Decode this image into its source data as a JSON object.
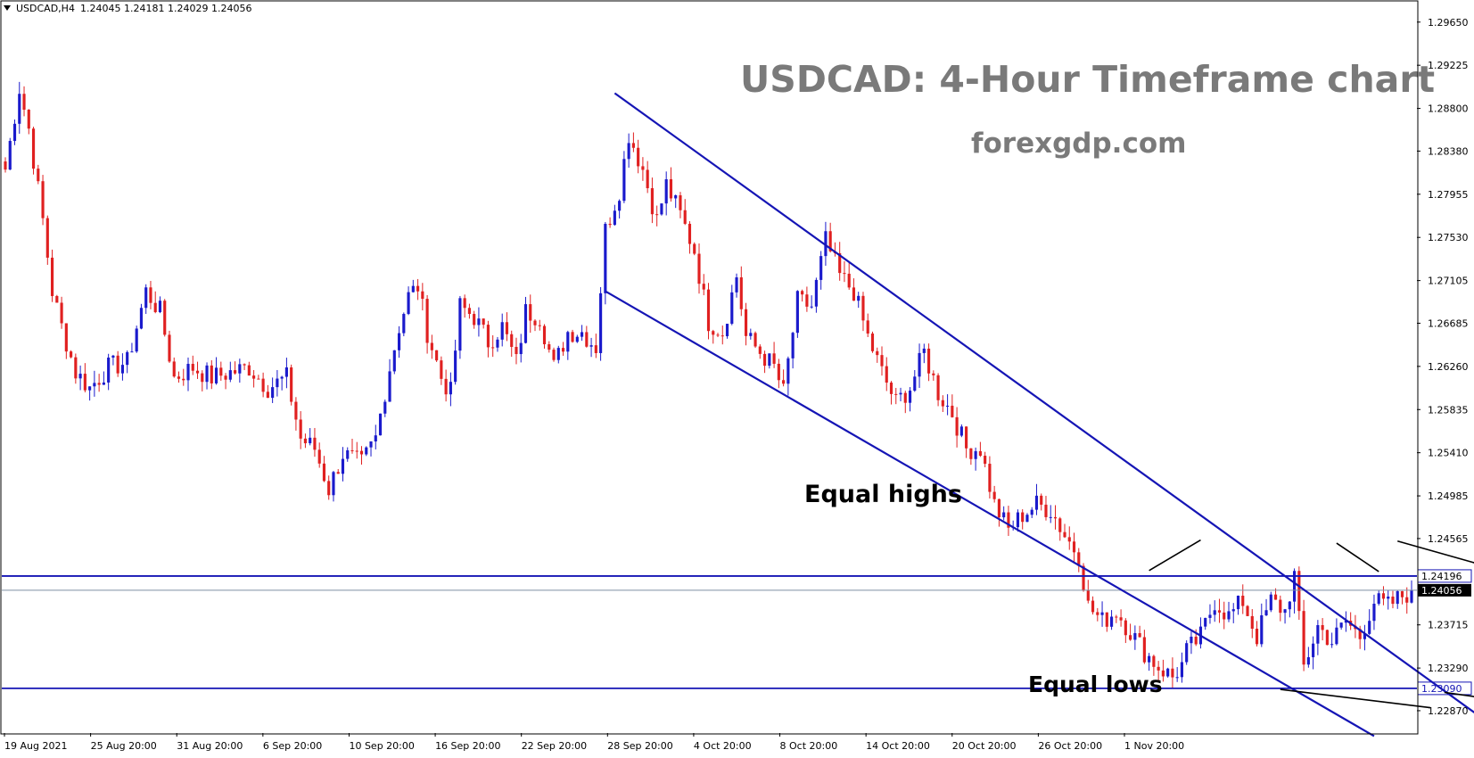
{
  "header": {
    "symbol_label": "USDCAD,H4",
    "ohlc": "1.24045 1.24181 1.24029 1.24056"
  },
  "title": "USDCAD: 4-Hour Timeframe chart",
  "subtitle": "forexgdp.com",
  "colors": {
    "bull": "#1a1acc",
    "bear": "#e02020",
    "line": "#1515b5",
    "grid_border": "#000000"
  },
  "chart_data": {
    "type": "candlestick",
    "symbol": "USDCAD",
    "timeframe": "H4",
    "ylim": [
      1.2265,
      1.2985
    ],
    "y_ticks": [
      "1.29650",
      "1.29225",
      "1.28800",
      "1.28380",
      "1.27955",
      "1.27530",
      "1.27105",
      "1.26685",
      "1.26260",
      "1.25835",
      "1.25410",
      "1.24985",
      "1.24565",
      "1.23715",
      "1.23290",
      "1.22870"
    ],
    "x_ticks": [
      "19 Aug 2021",
      "25 Aug 20:00",
      "31 Aug 20:00",
      "6 Sep 20:00",
      "10 Sep 20:00",
      "16 Sep 20:00",
      "22 Sep 20:00",
      "28 Sep 20:00",
      "4 Oct 20:00",
      "8 Oct 20:00",
      "14 Oct 20:00",
      "20 Oct 20:00",
      "26 Oct 20:00",
      "1 Nov 20:00"
    ],
    "bar_count": 252,
    "path_points": [
      [
        0,
        1.282
      ],
      [
        3,
        1.29
      ],
      [
        5,
        1.286
      ],
      [
        8,
        1.277
      ],
      [
        10,
        1.27
      ],
      [
        12,
        1.2665
      ],
      [
        15,
        1.262
      ],
      [
        18,
        1.2605
      ],
      [
        22,
        1.2625
      ],
      [
        26,
        1.263
      ],
      [
        30,
        1.27
      ],
      [
        33,
        1.268
      ],
      [
        36,
        1.2615
      ],
      [
        40,
        1.2625
      ],
      [
        44,
        1.2615
      ],
      [
        48,
        1.262
      ],
      [
        52,
        1.2625
      ],
      [
        56,
        1.2605
      ],
      [
        60,
        1.2615
      ],
      [
        63,
        1.2555
      ],
      [
        66,
        1.2545
      ],
      [
        69,
        1.2505
      ],
      [
        72,
        1.254
      ],
      [
        76,
        1.253
      ],
      [
        79,
        1.2555
      ],
      [
        82,
        1.2625
      ],
      [
        84,
        1.2665
      ],
      [
        86,
        1.2695
      ],
      [
        88,
        1.2705
      ],
      [
        90,
        1.266
      ],
      [
        93,
        1.2615
      ],
      [
        95,
        1.26
      ],
      [
        97,
        1.2685
      ],
      [
        100,
        1.2675
      ],
      [
        103,
        1.265
      ],
      [
        106,
        1.2665
      ],
      [
        109,
        1.263
      ],
      [
        111,
        1.268
      ],
      [
        114,
        1.2675
      ],
      [
        117,
        1.2625
      ],
      [
        120,
        1.266
      ],
      [
        123,
        1.266
      ],
      [
        126,
        1.2645
      ],
      [
        128,
        1.276
      ],
      [
        131,
        1.28
      ],
      [
        133,
        1.2855
      ],
      [
        136,
        1.282
      ],
      [
        139,
        1.277
      ],
      [
        141,
        1.2805
      ],
      [
        144,
        1.2775
      ],
      [
        147,
        1.274
      ],
      [
        150,
        1.267
      ],
      [
        153,
        1.266
      ],
      [
        156,
        1.2715
      ],
      [
        158,
        1.2655
      ],
      [
        161,
        1.264
      ],
      [
        164,
        1.2625
      ],
      [
        166,
        1.26
      ],
      [
        169,
        1.269
      ],
      [
        172,
        1.2685
      ],
      [
        175,
        1.275
      ],
      [
        178,
        1.2715
      ],
      [
        181,
        1.27
      ],
      [
        184,
        1.2655
      ],
      [
        187,
        1.262
      ],
      [
        190,
        1.259
      ],
      [
        193,
        1.2605
      ],
      [
        196,
        1.264
      ],
      [
        199,
        1.26
      ],
      [
        202,
        1.258
      ],
      [
        205,
        1.2545
      ],
      [
        208,
        1.2545
      ],
      [
        211,
        1.249
      ],
      [
        214,
        1.2465
      ],
      [
        217,
        1.248
      ],
      [
        220,
        1.249
      ],
      [
        223,
        1.2485
      ],
      [
        226,
        1.246
      ],
      [
        229,
        1.244
      ],
      [
        231,
        1.239
      ],
      [
        234,
        1.2375
      ],
      [
        237,
        1.2385
      ],
      [
        240,
        1.2365
      ],
      [
        243,
        1.2345
      ],
      [
        246,
        1.233
      ],
      [
        249,
        1.232
      ],
      [
        251,
        1.2332
      ]
    ],
    "path_end_index_of_first_segment": 251,
    "segment2_points": [
      [
        0,
        1.2345
      ],
      [
        3,
        1.236
      ],
      [
        6,
        1.2395
      ],
      [
        9,
        1.238
      ],
      [
        12,
        1.2395
      ],
      [
        15,
        1.236
      ],
      [
        18,
        1.2395
      ],
      [
        21,
        1.2385
      ],
      [
        23,
        1.242
      ],
      [
        25,
        1.233
      ],
      [
        28,
        1.237
      ],
      [
        31,
        1.2355
      ],
      [
        34,
        1.2375
      ],
      [
        37,
        1.236
      ],
      [
        40,
        1.2395
      ],
      [
        43,
        1.239
      ],
      [
        46,
        1.24
      ],
      [
        48,
        1.2405
      ]
    ],
    "levels": [
      {
        "price": 1.24196,
        "label": "1.24196",
        "style": "solid",
        "color": "#1515b5",
        "label_bg": "#ffffff",
        "label_fg": "#000000"
      },
      {
        "price": 1.24056,
        "label": "1.24056",
        "style": "thin",
        "color": "#7f8fa5",
        "label_bg": "#000000",
        "label_fg": "#ffffff"
      },
      {
        "price": 1.2309,
        "label": "1.23090",
        "style": "solid",
        "color": "#1515b5",
        "label_bg": "#ffffff",
        "label_fg": "#1515b5"
      }
    ],
    "channel": {
      "upper": [
        [
          130,
          1.2895
        ],
        [
          330,
          1.223
        ]
      ],
      "lower": [
        [
          128,
          1.27
        ],
        [
          292,
          1.2262
        ]
      ]
    },
    "annotations": [
      {
        "text": "Equal highs",
        "pointer_lines": [
          [
            [
              255,
              1.2455
            ],
            [
              244,
              1.2425
            ]
          ],
          [
            [
              284,
              1.2452
            ],
            [
              293,
              1.2424
            ]
          ],
          [
            [
              297,
              1.2454
            ],
            [
              320,
              1.2424
            ]
          ]
        ]
      },
      {
        "text": "Equal lows",
        "pointer_lines": [
          [
            [
              304,
              1.229
            ],
            [
              272,
              1.2308
            ]
          ],
          [
            [
              330,
              1.229
            ],
            [
              307,
              1.2305
            ]
          ]
        ]
      }
    ]
  }
}
